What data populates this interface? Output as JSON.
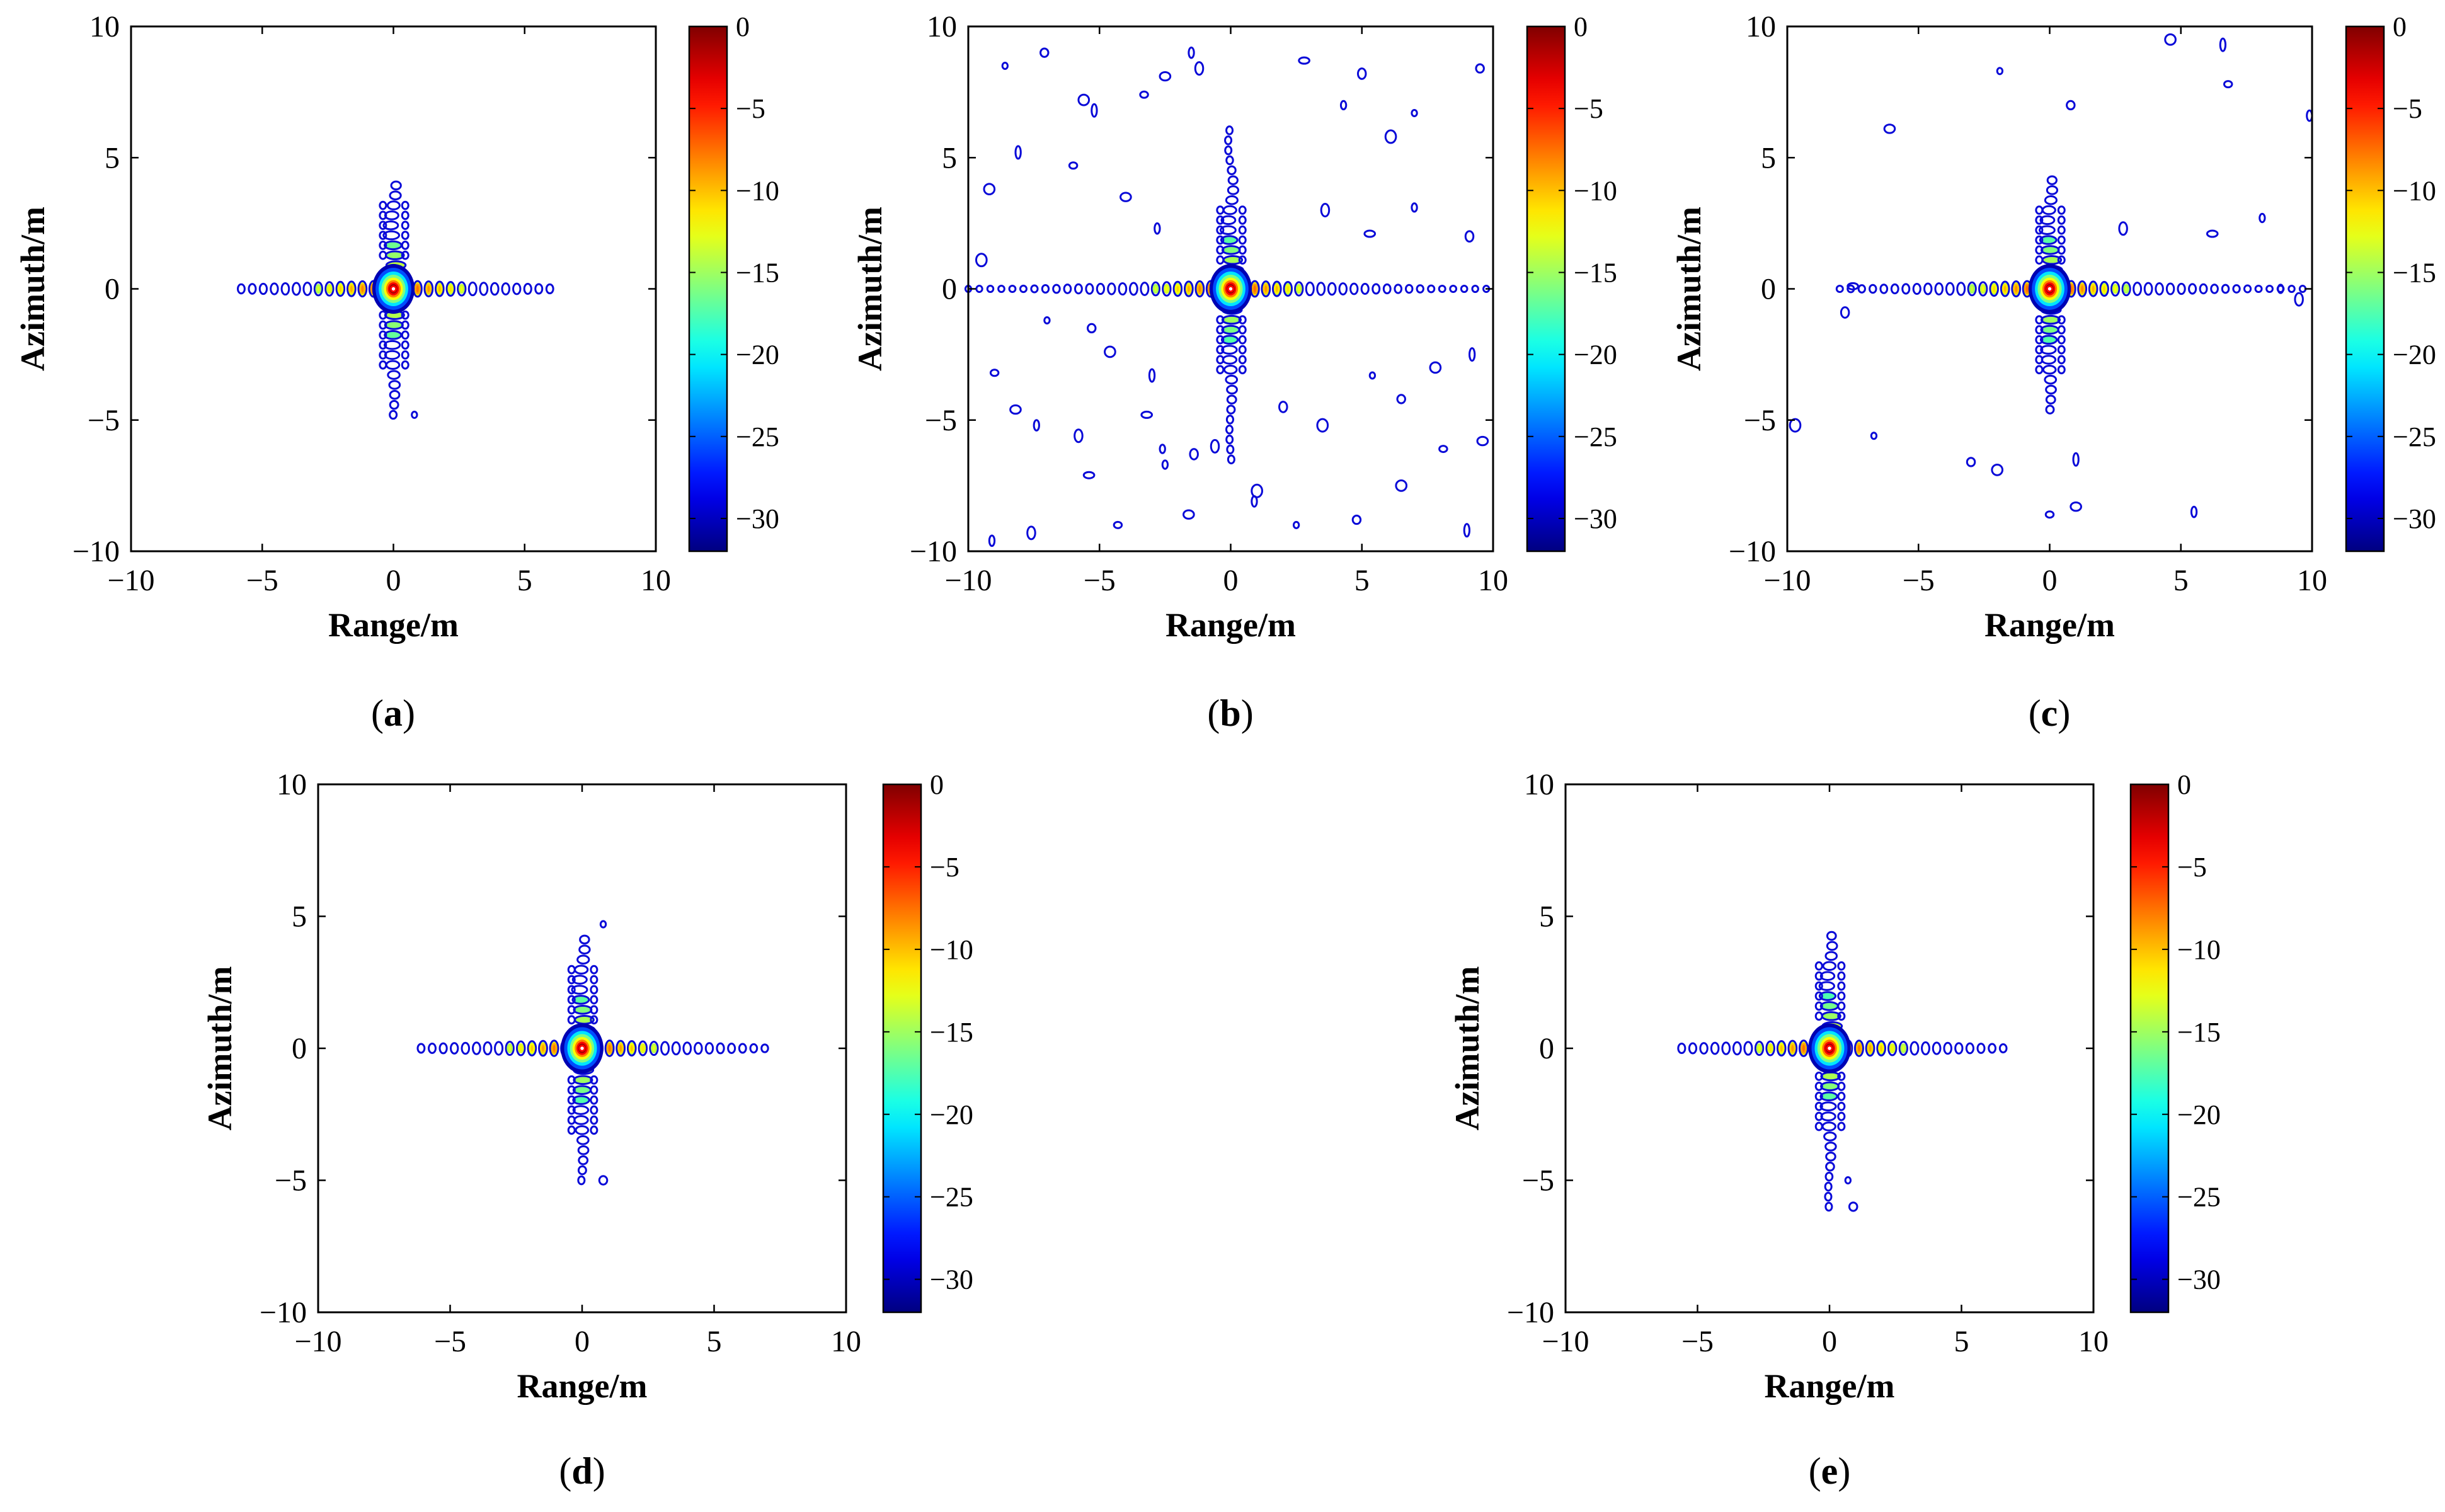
{
  "figure": {
    "chart_data": [
      {
        "type": "heatmap",
        "panel": "a",
        "caption": "(a)",
        "title": "",
        "xlabel": "Range/m",
        "ylabel": "Azimuth/m",
        "xlim": [
          -10,
          10
        ],
        "ylim": [
          -10,
          10
        ],
        "xticks": [
          "−10",
          "−5",
          "0",
          "5",
          "10"
        ],
        "yticks": [
          "10",
          "5",
          "0",
          "−5",
          "−10"
        ],
        "colorbar": {
          "range": [
            -32,
            0
          ],
          "ticks": [
            "0",
            "−5",
            "−10",
            "−15",
            "−20",
            "−25",
            "−30"
          ]
        },
        "peak": {
          "x": 0,
          "y": 0,
          "level_db": 0
        },
        "range_sidelobes_extent": [
          -5.8,
          6.2
        ],
        "azimuth_sidelobes_extent": [
          -4.8,
          4.1
        ],
        "spurious_contours": [
          [
            0.8,
            -4.8
          ]
        ]
      },
      {
        "type": "heatmap",
        "panel": "b",
        "caption": "(b)",
        "title": "",
        "xlabel": "Range/m",
        "ylabel": "Azimuth/m",
        "xlim": [
          -10,
          10
        ],
        "ylim": [
          -10,
          10
        ],
        "xticks": [
          "−10",
          "−5",
          "0",
          "5",
          "10"
        ],
        "yticks": [
          "10",
          "5",
          "0",
          "−5",
          "−10"
        ],
        "colorbar": {
          "range": [
            -32,
            0
          ],
          "ticks": [
            "0",
            "−5",
            "−10",
            "−15",
            "−20",
            "−25",
            "−30"
          ]
        },
        "peak": {
          "x": 0,
          "y": 0,
          "level_db": 0
        },
        "range_sidelobes_extent": [
          -10,
          10
        ],
        "azimuth_sidelobes_extent": [
          -6.5,
          6.2
        ],
        "spurious_contours": [
          [
            -8.6,
            8.5
          ],
          [
            -7.1,
            9.0
          ],
          [
            -5.6,
            7.2
          ],
          [
            -5.2,
            6.8
          ],
          [
            -3.3,
            7.4
          ],
          [
            -2.5,
            8.1
          ],
          [
            -1.5,
            9.0
          ],
          [
            -1.2,
            8.4
          ],
          [
            2.8,
            8.7
          ],
          [
            4.3,
            7.0
          ],
          [
            5.0,
            8.2
          ],
          [
            6.1,
            5.8
          ],
          [
            7.0,
            6.7
          ],
          [
            9.5,
            8.4
          ],
          [
            -9.2,
            3.8
          ],
          [
            -8.1,
            5.2
          ],
          [
            -6.0,
            4.7
          ],
          [
            -4.0,
            3.5
          ],
          [
            -2.8,
            2.3
          ],
          [
            3.6,
            3.0
          ],
          [
            5.3,
            2.1
          ],
          [
            7.0,
            3.1
          ],
          [
            9.1,
            2.0
          ],
          [
            -9.5,
            1.1
          ],
          [
            -7.0,
            -1.2
          ],
          [
            -5.3,
            -1.5
          ],
          [
            -4.6,
            -2.4
          ],
          [
            -3.0,
            -3.3
          ],
          [
            -9.0,
            -3.2
          ],
          [
            -8.2,
            -4.6
          ],
          [
            -7.4,
            -5.2
          ],
          [
            -5.8,
            -5.6
          ],
          [
            -3.2,
            -4.8
          ],
          [
            -2.6,
            -6.1
          ],
          [
            2.0,
            -4.5
          ],
          [
            3.5,
            -5.2
          ],
          [
            5.4,
            -3.3
          ],
          [
            6.5,
            -4.2
          ],
          [
            7.8,
            -3.0
          ],
          [
            9.2,
            -2.5
          ],
          [
            8.1,
            -6.1
          ],
          [
            9.6,
            -5.8
          ],
          [
            -9.1,
            -9.6
          ],
          [
            -7.6,
            -9.3
          ],
          [
            -5.4,
            -7.1
          ],
          [
            -2.5,
            -6.7
          ],
          [
            -1.4,
            -6.3
          ],
          [
            1.0,
            -7.7
          ],
          [
            2.5,
            -9.0
          ],
          [
            4.8,
            -8.8
          ],
          [
            6.5,
            -7.5
          ],
          [
            9.0,
            -9.2
          ],
          [
            -4.3,
            -9.0
          ],
          [
            -1.6,
            -8.6
          ],
          [
            0.9,
            -8.1
          ],
          [
            -0.6,
            -6.0
          ]
        ]
      },
      {
        "type": "heatmap",
        "panel": "c",
        "caption": "(c)",
        "title": "",
        "xlabel": "Range/m",
        "ylabel": "Azimuth/m",
        "xlim": [
          -10,
          10
        ],
        "ylim": [
          -10,
          10
        ],
        "xticks": [
          "−10",
          "−5",
          "0",
          "5",
          "10"
        ],
        "yticks": [
          "10",
          "5",
          "0",
          "−5",
          "−10"
        ],
        "colorbar": {
          "range": [
            -32,
            0
          ],
          "ticks": [
            "0",
            "−5",
            "−10",
            "−15",
            "−20",
            "−25",
            "−30"
          ]
        },
        "peak": {
          "x": 0,
          "y": 0,
          "level_db": 0
        },
        "range_sidelobes_extent": [
          -8,
          9.7
        ],
        "azimuth_sidelobes_extent": [
          -4.6,
          4.5
        ],
        "spurious_contours": [
          [
            -1.9,
            8.3
          ],
          [
            0.8,
            7.0
          ],
          [
            4.6,
            9.5
          ],
          [
            6.6,
            9.3
          ],
          [
            6.8,
            7.8
          ],
          [
            -6.1,
            6.1
          ],
          [
            9.9,
            6.6
          ],
          [
            2.8,
            2.3
          ],
          [
            6.2,
            2.1
          ],
          [
            8.1,
            2.7
          ],
          [
            -7.8,
            -0.9
          ],
          [
            -9.7,
            -5.2
          ],
          [
            -6.7,
            -5.6
          ],
          [
            -3.0,
            -6.6
          ],
          [
            -2.0,
            -6.9
          ],
          [
            1.0,
            -6.5
          ],
          [
            0.0,
            -8.6
          ],
          [
            1.0,
            -8.3
          ],
          [
            5.5,
            -8.5
          ],
          [
            9.5,
            -0.4
          ],
          [
            -7.5,
            0.1
          ],
          [
            8.8,
            0.0
          ]
        ]
      },
      {
        "type": "heatmap",
        "panel": "d",
        "caption": "(d)",
        "title": "",
        "xlabel": "Range/m",
        "ylabel": "Azimuth/m",
        "xlim": [
          -10,
          10
        ],
        "ylim": [
          -10,
          10
        ],
        "xticks": [
          "−10",
          "−5",
          "0",
          "5",
          "10"
        ],
        "yticks": [
          "10",
          "5",
          "0",
          "−5",
          "−10"
        ],
        "colorbar": {
          "range": [
            -32,
            0
          ],
          "ticks": [
            "0",
            "−5",
            "−10",
            "−15",
            "−20",
            "−25",
            "−30"
          ]
        },
        "peak": {
          "x": 0,
          "y": 0,
          "level_db": 0
        },
        "range_sidelobes_extent": [
          -6.1,
          7.2
        ],
        "azimuth_sidelobes_extent": [
          -5.0,
          4.3
        ],
        "spurious_contours": [
          [
            0.8,
            4.7
          ],
          [
            0.8,
            -5.0
          ]
        ]
      },
      {
        "type": "heatmap",
        "panel": "e",
        "caption": "(e)",
        "title": "",
        "xlabel": "Range/m",
        "ylabel": "Azimuth/m",
        "xlim": [
          -10,
          10
        ],
        "ylim": [
          -10,
          10
        ],
        "xticks": [
          "−10",
          "−5",
          "0",
          "5",
          "10"
        ],
        "yticks": [
          "10",
          "5",
          "0",
          "−5",
          "−10"
        ],
        "colorbar": {
          "range": [
            -32,
            0
          ],
          "ticks": [
            "0",
            "−5",
            "−10",
            "−15",
            "−20",
            "−25",
            "−30"
          ]
        },
        "peak": {
          "x": 0,
          "y": 0,
          "level_db": 0
        },
        "range_sidelobes_extent": [
          -5.6,
          6.6
        ],
        "azimuth_sidelobes_extent": [
          -6.0,
          4.3
        ],
        "spurious_contours": [
          [
            0.7,
            -5.0
          ],
          [
            0.9,
            -6.0
          ]
        ]
      }
    ]
  }
}
